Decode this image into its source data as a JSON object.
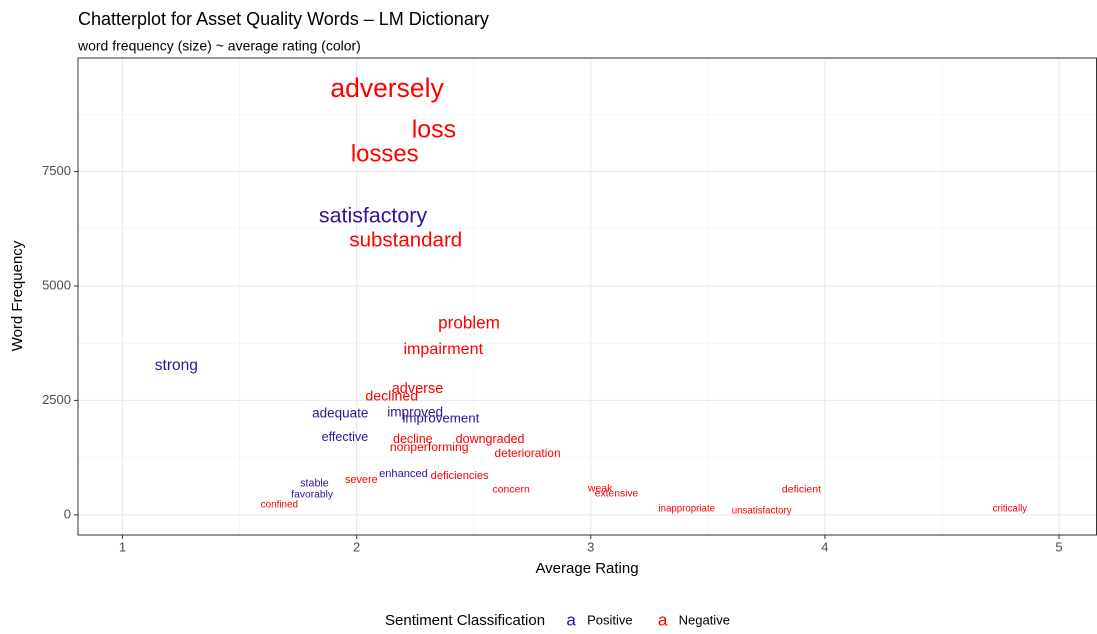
{
  "chart_data": {
    "type": "scatter",
    "title": "Chatterplot for Asset Quality Words – LM Dictionary",
    "subtitle": "word frequency (size) ~ average rating (color)",
    "x_label": "Average Rating",
    "y_label": "Word Frequency",
    "xlim": [
      0.81,
      5.16
    ],
    "ylim": [
      -440,
      9980
    ],
    "xticks": [
      1,
      2,
      3,
      4,
      5
    ],
    "yticks": [
      0,
      2500,
      5000,
      7500
    ],
    "grid": true,
    "legend_title": "Sentiment Classification",
    "legend_key": "a",
    "legend_position": "bottom",
    "series": [
      {
        "name": "Positive",
        "color": "#33129b",
        "labels": [
          "satisfactory",
          "strong",
          "adequate",
          "improved",
          "improvement",
          "effective",
          "enhanced",
          "stable",
          "favorably"
        ],
        "x": [
          2.07,
          1.23,
          1.93,
          2.25,
          2.36,
          1.95,
          2.2,
          1.82,
          1.81
        ],
        "values": [
          6507,
          3253,
          2205,
          2227,
          2096,
          1681,
          895,
          677,
          437
        ]
      },
      {
        "name": "Negative",
        "color": "#ff0000",
        "labels": [
          "adversely",
          "loss",
          "losses",
          "substandard",
          "problem",
          "impairment",
          "adverse",
          "declined",
          "decline",
          "downgraded",
          "nonperforming",
          "deterioration",
          "deficiencies",
          "severe",
          "deficient",
          "weak",
          "concern",
          "extensive",
          "confined",
          "inappropriate",
          "critically",
          "unsatisfactory"
        ],
        "x": [
          2.13,
          2.33,
          2.12,
          2.21,
          2.48,
          2.37,
          2.26,
          2.15,
          2.24,
          2.57,
          2.31,
          2.73,
          2.44,
          2.02,
          3.9,
          3.04,
          2.66,
          3.11,
          1.67,
          3.41,
          4.79,
          3.73
        ],
        "values": [
          9280,
          8384,
          7860,
          5983,
          4170,
          3603,
          2751,
          2576,
          1638,
          1638,
          1463,
          1332,
          852,
          764,
          546,
          568,
          546,
          459,
          218,
          131,
          131,
          87
        ]
      }
    ]
  }
}
